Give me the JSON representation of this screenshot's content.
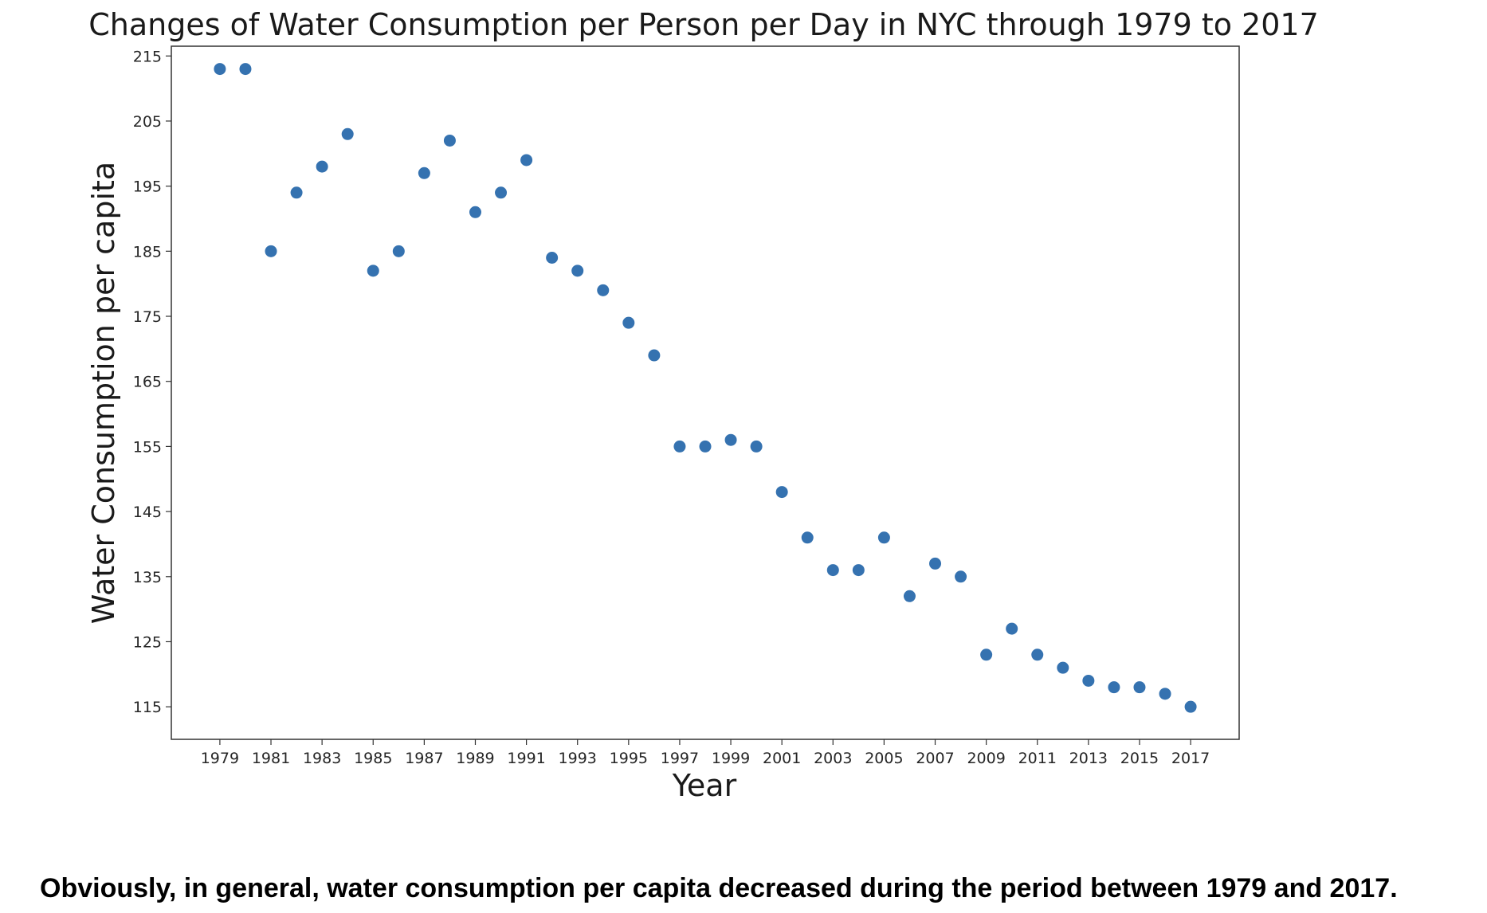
{
  "chart_data": {
    "type": "scatter",
    "title": "Changes of Water Consumption per Person per Day in NYC through 1979 to 2017",
    "xlabel": "Year",
    "ylabel": "Water Consumption per capita",
    "xlim": [
      1977.1,
      2018.9
    ],
    "ylim": [
      110,
      216.5
    ],
    "xticks": [
      1979,
      1981,
      1983,
      1985,
      1987,
      1989,
      1991,
      1993,
      1995,
      1997,
      1999,
      2001,
      2003,
      2005,
      2007,
      2009,
      2011,
      2013,
      2015,
      2017
    ],
    "yticks": [
      115,
      125,
      135,
      145,
      155,
      165,
      175,
      185,
      195,
      205,
      215
    ],
    "grid": false,
    "marker_color": "#3572b0",
    "series": [
      {
        "x": [
          1979,
          1980,
          1981,
          1982,
          1983,
          1984,
          1985,
          1986,
          1987,
          1988,
          1989,
          1990,
          1991,
          1992,
          1993,
          1994,
          1995,
          1996,
          1997,
          1998,
          1999,
          2000,
          2001,
          2002,
          2003,
          2004,
          2005,
          2006,
          2007,
          2008,
          2009,
          2010,
          2011,
          2012,
          2013,
          2014,
          2015,
          2016,
          2017
        ],
        "y": [
          213,
          213,
          185,
          194,
          198,
          203,
          182,
          185,
          197,
          202,
          191,
          194,
          199,
          184,
          182,
          179,
          174,
          169,
          155,
          155,
          156,
          155,
          148,
          141,
          136,
          136,
          141,
          132,
          137,
          135,
          123,
          127,
          123,
          121,
          119,
          118,
          118,
          117,
          115
        ]
      }
    ]
  },
  "caption": "Obviously, in general, water consumption per capita decreased during the period between 1979 and 2017."
}
